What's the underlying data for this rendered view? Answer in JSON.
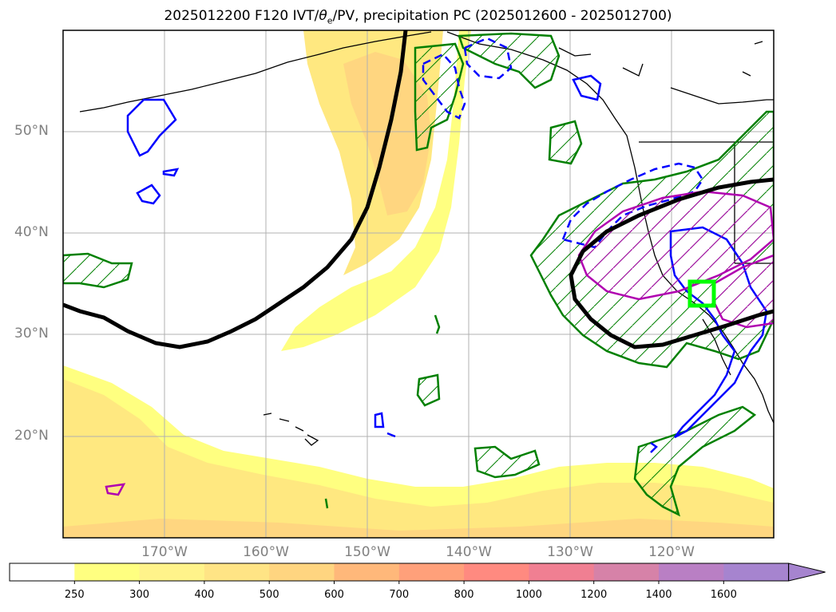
{
  "title_prefix": "2025012200 F120 IVT/",
  "title_theta": "θ",
  "title_sub": "e",
  "title_suffix": "/PV, precipitation PC (2025012600 - 2025012700)",
  "lat_labels": [
    "50°N",
    "40°N",
    "30°N",
    "20°N"
  ],
  "lon_labels": [
    "170°W",
    "160°W",
    "150°W",
    "140°W",
    "130°W",
    "120°W"
  ],
  "colorbar": {
    "ticks": [
      "250",
      "300",
      "400",
      "500",
      "600",
      "700",
      "800",
      "1000",
      "1200",
      "1400",
      "1600"
    ],
    "colors": [
      "#ffffff",
      "#ffff80",
      "#fff38a",
      "#ffe485",
      "#ffd580",
      "#ffb87a",
      "#ffa07a",
      "#ff8a80",
      "#f07f92",
      "#d682a8",
      "#b97fc4",
      "#a684cf"
    ],
    "extend": "max"
  },
  "map_colors": {
    "ocean": "#ffffff",
    "ivt_low": "#ffff80",
    "ivt_mid": "#ffe880",
    "ivt_high": "#ffd680",
    "theta_e": "#000000",
    "pv_positive": "#0000ff",
    "precip_pc": "#008000",
    "pv_magenta": "#b000b0",
    "box": "#00ff00"
  }
}
